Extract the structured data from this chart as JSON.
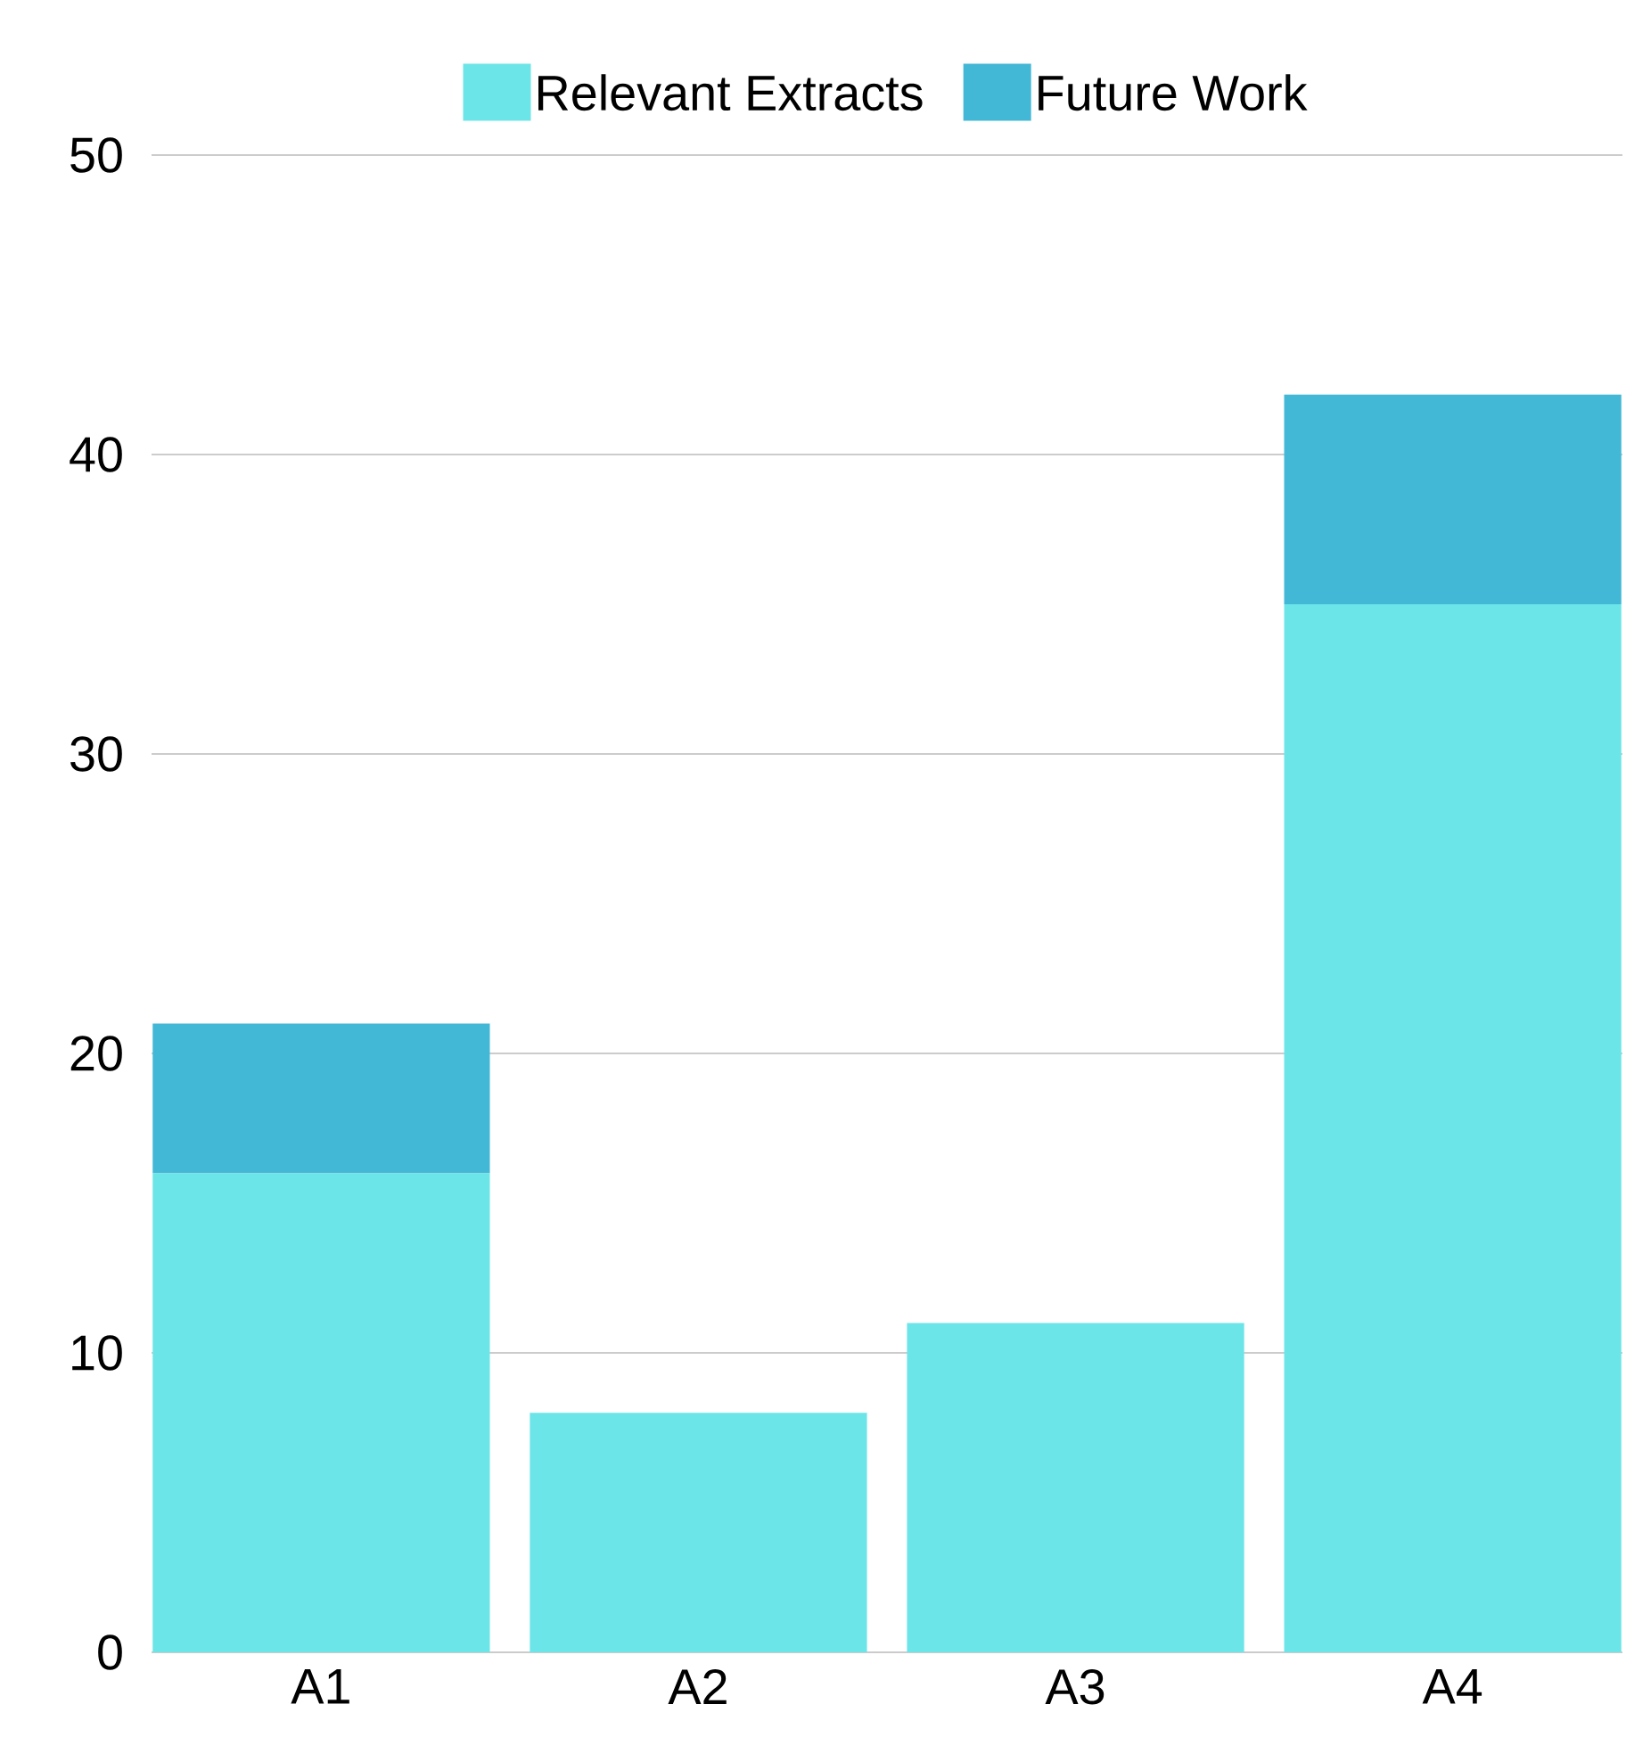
{
  "chart_data": {
    "type": "bar",
    "stacked": true,
    "categories": [
      "A1",
      "A2",
      "A3",
      "A4"
    ],
    "series": [
      {
        "name": "Relevant Extracts",
        "color": "#6ce5e8",
        "values": [
          16,
          8,
          11,
          35
        ]
      },
      {
        "name": "Future Work",
        "color": "#42b7d6",
        "values": [
          5,
          null,
          null,
          7
        ]
      }
    ],
    "ylim": [
      0,
      50
    ],
    "yticks": [
      0,
      10,
      20,
      30,
      40,
      50
    ],
    "grid": "y",
    "legend": "top"
  }
}
